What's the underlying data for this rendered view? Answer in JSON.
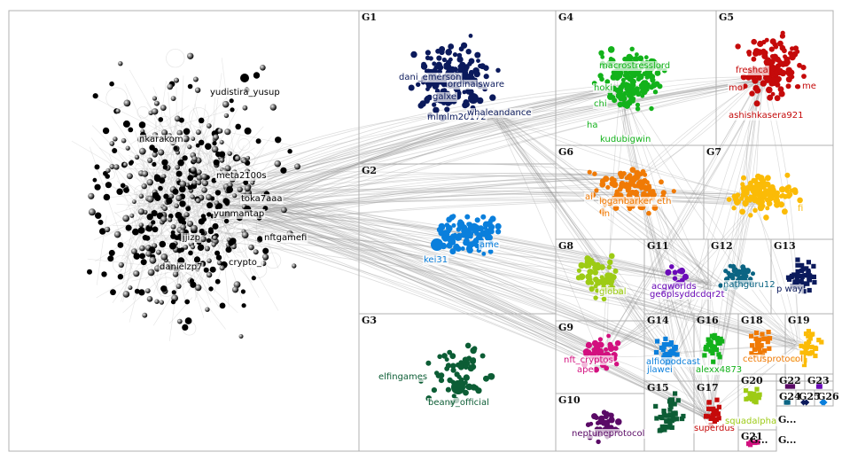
{
  "groups": [
    {
      "id": "G1",
      "color": "#0b1a5c",
      "shape": "circle",
      "names": [
        "dani_emerson",
        "galxe",
        "mlmlm20172",
        "ordinalsware",
        "whaleandance"
      ]
    },
    {
      "id": "G2",
      "color": "#0a7fdc",
      "shape": "circle",
      "names": [
        "kei31",
        "ame"
      ]
    },
    {
      "id": "G3",
      "color": "#0c5d35",
      "shape": "circle",
      "names": [
        "elfingames",
        "beany_official"
      ]
    },
    {
      "id": "G4",
      "color": "#13b21b",
      "shape": "circle",
      "names": [
        "macrostresslord",
        "hoki",
        "chi",
        "ha",
        "kudubigwin"
      ]
    },
    {
      "id": "G5",
      "color": "#c50a0a",
      "shape": "circle",
      "names": [
        "freshca",
        "mo",
        "me",
        "ashishkasera921"
      ]
    },
    {
      "id": "G6",
      "color": "#f07a05",
      "shape": "circle",
      "names": [
        "ai",
        "loganbarker_eth",
        "in"
      ]
    },
    {
      "id": "G7",
      "color": "#fbbb07",
      "shape": "circle",
      "names": [
        "fi"
      ]
    },
    {
      "id": "G8",
      "color": "#9dcb15",
      "shape": "circle",
      "names": [
        "global"
      ]
    },
    {
      "id": "G9",
      "color": "#d3107f",
      "shape": "circle",
      "names": [
        "nft_cryptos",
        "ape"
      ]
    },
    {
      "id": "G10",
      "color": "#5a0a66",
      "shape": "circle",
      "names": [
        "neptuneprotocol"
      ]
    },
    {
      "id": "G11",
      "color": "#6a0ab8",
      "shape": "circle",
      "names": [
        "acqworlds",
        "ge6plsyddcdqr2t"
      ]
    },
    {
      "id": "G12",
      "color": "#0b6483",
      "shape": "circle",
      "names": [
        "nathguru12"
      ]
    },
    {
      "id": "G13",
      "color": "#0b1a5c",
      "shape": "square",
      "names": [
        "p way"
      ]
    },
    {
      "id": "G14",
      "color": "#0a7fdc",
      "shape": "square",
      "names": [
        "alfiopodcast",
        "jlawei"
      ]
    },
    {
      "id": "G15",
      "color": "#0c5d35",
      "shape": "square",
      "names": []
    },
    {
      "id": "G16",
      "color": "#13b21b",
      "shape": "square",
      "names": [
        "alexx4873"
      ]
    },
    {
      "id": "G17",
      "color": "#c50a0a",
      "shape": "square",
      "names": [
        "superdus"
      ]
    },
    {
      "id": "G18",
      "color": "#f07a05",
      "shape": "square",
      "names": [
        "cetusprotocol"
      ]
    },
    {
      "id": "G19",
      "color": "#fbbb07",
      "shape": "square",
      "names": []
    },
    {
      "id": "G20",
      "color": "#9dcb15",
      "shape": "square",
      "names": [
        "squadalpha"
      ]
    },
    {
      "id": "G21",
      "color": "#d3107f",
      "shape": "square",
      "names": []
    },
    {
      "id": "G22",
      "color": "#5a0a66",
      "shape": "square",
      "names": []
    },
    {
      "id": "G23",
      "color": "#6a0ab8",
      "shape": "square",
      "names": []
    },
    {
      "id": "G24",
      "color": "#0b6483",
      "shape": "square",
      "names": []
    },
    {
      "id": "G25",
      "color": "#0b1a5c",
      "shape": "diamond",
      "names": []
    },
    {
      "id": "G26",
      "color": "#0a7fdc",
      "shape": "diamond",
      "names": []
    }
  ],
  "left_cluster": {
    "color": "#000000",
    "names": [
      "yudistira_yusup",
      "nkarakom",
      "meta2100s",
      "toka7aaa",
      "yunmantap",
      "nftgamefi",
      "danielzp7",
      "crypto_",
      "jjizp"
    ]
  },
  "small_labels": [
    "G...",
    "G...",
    "G..."
  ]
}
